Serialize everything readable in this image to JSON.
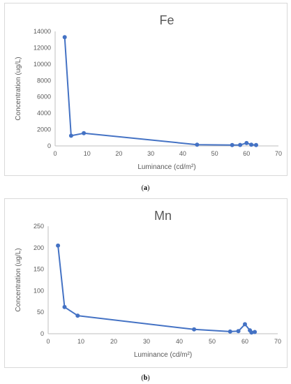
{
  "chart_data": [
    {
      "type": "line",
      "title": "Fe",
      "xlabel": "Luminance (cd/m²)",
      "ylabel": "Concentration (ug/L)",
      "xlim": [
        0,
        70
      ],
      "ylim": [
        0,
        14000
      ],
      "x_ticks": [
        "0",
        "10",
        "20",
        "30",
        "40",
        "50",
        "60",
        "70"
      ],
      "y_ticks": [
        "0",
        "2000",
        "4000",
        "6000",
        "8000",
        "10000",
        "12000",
        "14000"
      ],
      "grid": false,
      "series": [
        {
          "x": [
            3,
            5,
            9,
            44.5,
            55.5,
            58,
            60,
            61.5,
            63
          ],
          "y": [
            13300,
            1250,
            1550,
            150,
            100,
            120,
            350,
            150,
            100
          ]
        }
      ],
      "caption_label": "a"
    },
    {
      "type": "line",
      "title": "Mn",
      "xlabel": "Luminance (cd/m²)",
      "ylabel": "Concentration (ug/L)",
      "xlim": [
        0,
        70
      ],
      "ylim": [
        0,
        250
      ],
      "x_ticks": [
        "0",
        "10",
        "20",
        "30",
        "40",
        "50",
        "60",
        "70"
      ],
      "y_ticks": [
        "0",
        "50",
        "100",
        "150",
        "200",
        "250"
      ],
      "grid": false,
      "series": [
        {
          "x": [
            3,
            5,
            9,
            44.5,
            55.5,
            58,
            60,
            61.5,
            62,
            63
          ],
          "y": [
            205,
            62,
            42,
            10,
            5,
            6,
            22,
            8,
            3,
            4
          ]
        }
      ],
      "caption_label": "b"
    }
  ],
  "colors": {
    "series": "#4472c4",
    "axis": "#bfbfbf",
    "text": "#595959"
  }
}
